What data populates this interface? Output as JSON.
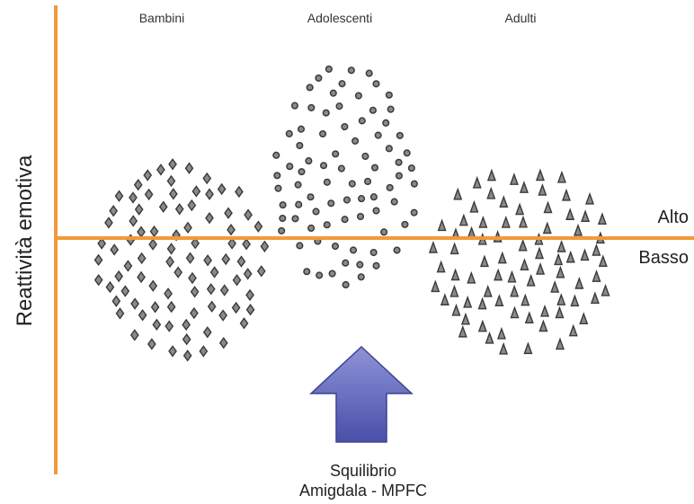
{
  "axis_label": "Reattività emotiva",
  "groups": [
    {
      "label": "Bambini",
      "marker": "diamond"
    },
    {
      "label": "Adolescenti",
      "marker": "circle"
    },
    {
      "label": "Adulti",
      "marker": "triangle"
    }
  ],
  "levels": {
    "high": "Alto",
    "low": "Basso"
  },
  "caption": {
    "line1": "Squilibrio",
    "line2": "Amigdala - MPFC"
  },
  "colors": {
    "axis": "#f3993a",
    "marker_fill": "#8a8a8a",
    "marker_stroke": "#3a3a3a",
    "arrow_fill_top": "#8e93d8",
    "arrow_fill_bottom": "#4a4fa8",
    "arrow_stroke": "#3e4390"
  },
  "icons": {
    "arrow": "up-arrow-icon"
  }
}
